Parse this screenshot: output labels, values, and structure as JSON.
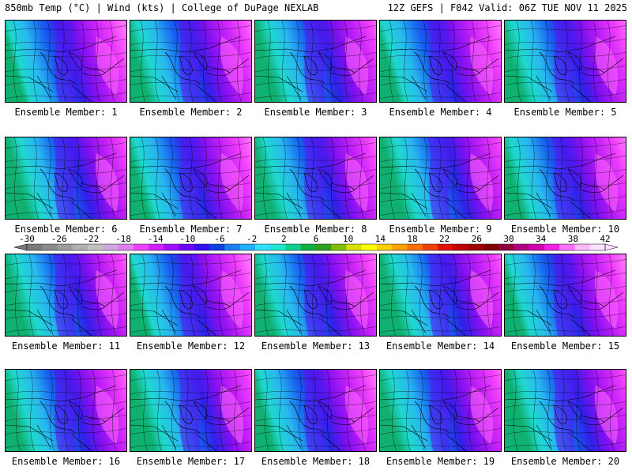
{
  "header": {
    "left": "850mb Temp (°C) | Wind (kts) | College of DuPage NEXLAB",
    "right": "12Z GEFS | F042 Valid: 06Z TUE NOV 11 2025"
  },
  "panels": [
    {
      "label": "Ensemble Member: 1"
    },
    {
      "label": "Ensemble Member: 2"
    },
    {
      "label": "Ensemble Member: 3"
    },
    {
      "label": "Ensemble Member: 4"
    },
    {
      "label": "Ensemble Member: 5"
    },
    {
      "label": "Ensemble Member: 6"
    },
    {
      "label": "Ensemble Member: 7"
    },
    {
      "label": "Ensemble Member: 8"
    },
    {
      "label": "Ensemble Member: 9"
    },
    {
      "label": "Ensemble Member: 10"
    },
    {
      "label": "Ensemble Member: 11"
    },
    {
      "label": "Ensemble Member: 12"
    },
    {
      "label": "Ensemble Member: 13"
    },
    {
      "label": "Ensemble Member: 14"
    },
    {
      "label": "Ensemble Member: 15"
    },
    {
      "label": "Ensemble Member: 16"
    },
    {
      "label": "Ensemble Member: 17"
    },
    {
      "label": "Ensemble Member: 18"
    },
    {
      "label": "Ensemble Member: 19"
    },
    {
      "label": "Ensemble Member: 20"
    }
  ],
  "colorbar": {
    "ticks": [
      "-30",
      "-26",
      "-22",
      "-18",
      "-14",
      "-10",
      "-6",
      "-2",
      "2",
      "6",
      "10",
      "14",
      "18",
      "22",
      "26",
      "30",
      "34",
      "38",
      "42"
    ],
    "colors": [
      "#7a7a7a",
      "#8c8c8c",
      "#9e9e9e",
      "#b0b0b0",
      "#c2c2c2",
      "#d0a8e0",
      "#e080f0",
      "#f040ff",
      "#d020ff",
      "#a010ff",
      "#7000ff",
      "#3010f0",
      "#1040e0",
      "#1c80f0",
      "#20b0ff",
      "#30e0ff",
      "#20e8d0",
      "#10d090",
      "#10b040",
      "#30a020",
      "#80c000",
      "#d8e000",
      "#ffff00",
      "#ffd000",
      "#ffa000",
      "#ff7000",
      "#f04000",
      "#e01000",
      "#c00000",
      "#a00000",
      "#800000",
      "#900040",
      "#b00080",
      "#d000b0",
      "#f020e0",
      "#ff70ff",
      "#ffb8ff",
      "#ffe0ff"
    ]
  }
}
